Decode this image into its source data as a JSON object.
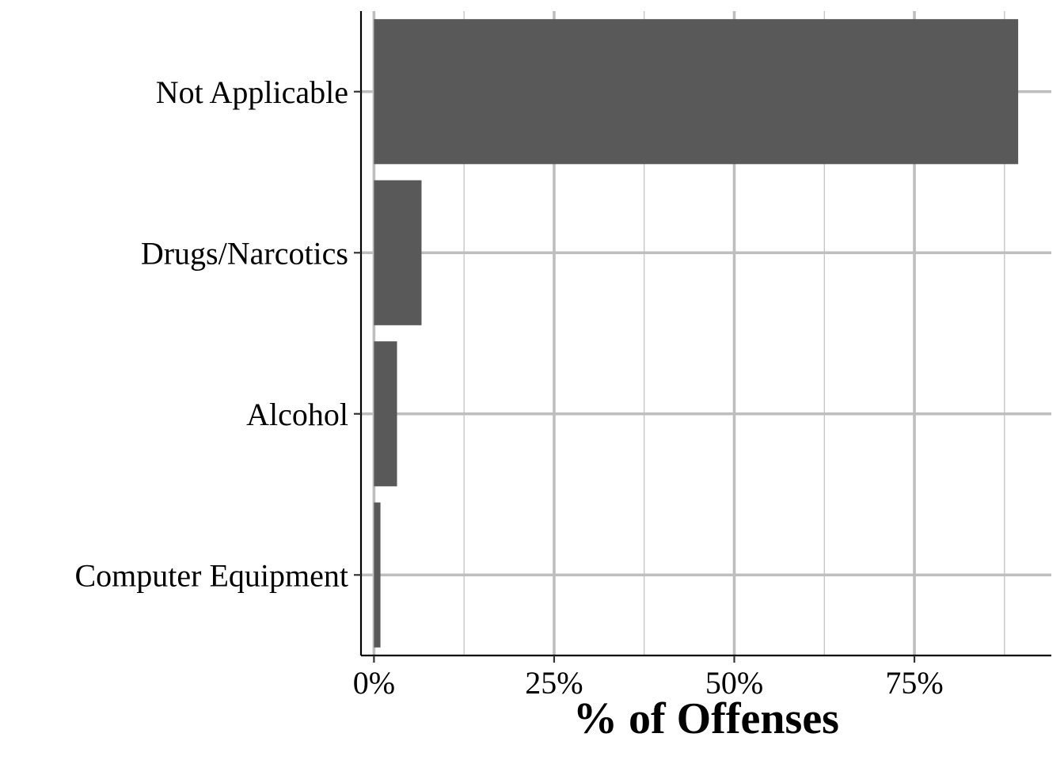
{
  "chart_data": {
    "type": "bar",
    "orientation": "horizontal",
    "categories": [
      "Not Applicable",
      "Drugs/Narcotics",
      "Alcohol",
      "Computer Equipment"
    ],
    "values": [
      89.4,
      6.6,
      3.2,
      0.9
    ],
    "unit": "%",
    "bar_color": "#595959",
    "xlabel": "% of Offenses",
    "ylabel": "",
    "xlim": [
      -1.8,
      94
    ],
    "x_ticks": [
      {
        "value": 0,
        "label": "0%"
      },
      {
        "value": 25,
        "label": "25%"
      },
      {
        "value": 50,
        "label": "50%"
      },
      {
        "value": 75,
        "label": "75%"
      }
    ],
    "x_minor_ticks": [
      12.5,
      37.5,
      62.5,
      87.5
    ],
    "grid": true,
    "legend": "none"
  }
}
